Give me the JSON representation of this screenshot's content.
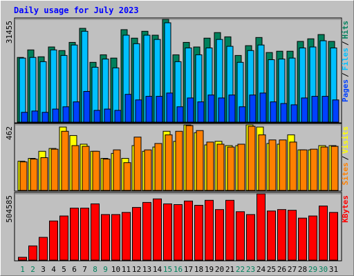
{
  "chart_data": [
    {
      "type": "bar",
      "title": "Daily usage for July 2023",
      "series": [
        {
          "name": "Hits",
          "color": "#00805c",
          "values": [
            19800,
            22100,
            20000,
            23000,
            21900,
            24400,
            28700,
            18300,
            20600,
            19600,
            28300,
            25700,
            27800,
            26600,
            31455,
            20600,
            24400,
            23000,
            25700,
            27400,
            26100,
            20400,
            23400,
            25900,
            21300,
            21700,
            21700,
            24700,
            25500,
            26800,
            24700
          ]
        },
        {
          "name": "Files",
          "color": "#00c0ff",
          "values": [
            19600,
            19800,
            18500,
            22100,
            20400,
            23600,
            27800,
            16800,
            19300,
            16600,
            26600,
            24000,
            26600,
            25300,
            30400,
            18500,
            22700,
            20600,
            22700,
            25300,
            23200,
            18300,
            21900,
            23600,
            19100,
            19300,
            19600,
            22700,
            23000,
            24900,
            22700
          ]
        },
        {
          "name": "Pages",
          "color": "#0040ff",
          "values": [
            3000,
            3400,
            3000,
            4000,
            4700,
            6200,
            9400,
            3600,
            4000,
            3600,
            8500,
            6800,
            7900,
            7900,
            8900,
            4700,
            7400,
            6200,
            8300,
            7400,
            8300,
            4700,
            8300,
            8900,
            6200,
            5700,
            5300,
            7400,
            7900,
            7900,
            6800
          ]
        }
      ],
      "ylim": [
        0,
        31455
      ],
      "yticks": [
        31455
      ],
      "legend_separator": "/"
    },
    {
      "type": "bar",
      "series": [
        {
          "name": "Visits",
          "color": "#ffff00",
          "values": [
            206,
            226,
            276,
            296,
            447,
            387,
            326,
            276,
            226,
            261,
            226,
            316,
            276,
            306,
            417,
            346,
            462,
            407,
            321,
            346,
            316,
            316,
            462,
            447,
            331,
            326,
            392,
            286,
            286,
            316,
            316
          ]
        },
        {
          "name": "Sites",
          "color": "#ff8000",
          "values": [
            201,
            221,
            231,
            291,
            417,
            316,
            311,
            276,
            221,
            286,
            196,
            376,
            286,
            331,
            392,
            417,
            457,
            422,
            341,
            326,
            306,
            326,
            452,
            392,
            356,
            356,
            341,
            286,
            291,
            306,
            311
          ]
        }
      ],
      "ylim": [
        0,
        462
      ],
      "yticks": [
        462
      ],
      "legend_separator": "/"
    },
    {
      "type": "bar",
      "categories": [
        "1",
        "2",
        "3",
        "4",
        "5",
        "6",
        "7",
        "8",
        "9",
        "10",
        "11",
        "12",
        "13",
        "14",
        "15",
        "16",
        "17",
        "18",
        "19",
        "20",
        "21",
        "22",
        "23",
        "24",
        "25",
        "26",
        "27",
        "28",
        "29",
        "30",
        "31"
      ],
      "category_colors": [
        "#00805c",
        "#00805c",
        "#000000",
        "#000000",
        "#000000",
        "#000000",
        "#000000",
        "#00805c",
        "#00805c",
        "#000000",
        "#000000",
        "#000000",
        "#000000",
        "#000000",
        "#00805c",
        "#00805c",
        "#000000",
        "#000000",
        "#000000",
        "#000000",
        "#000000",
        "#00805c",
        "#00805c",
        "#000000",
        "#000000",
        "#000000",
        "#000000",
        "#000000",
        "#00805c",
        "#00805c",
        "#000000"
      ],
      "series": [
        {
          "name": "KBytes",
          "color": "#ff0000",
          "values": [
            21700,
            108500,
            173600,
            298400,
            336400,
            396100,
            396100,
            428700,
            347300,
            347300,
            363500,
            401500,
            439500,
            466600,
            428700,
            423200,
            450400,
            417800,
            455800,
            385200,
            455800,
            369000,
            347300,
            504585,
            374400,
            385200,
            379800,
            320100,
            336400,
            412400,
            363500
          ]
        }
      ],
      "ylim": [
        0,
        504585
      ],
      "yticks": [
        504585
      ]
    }
  ]
}
